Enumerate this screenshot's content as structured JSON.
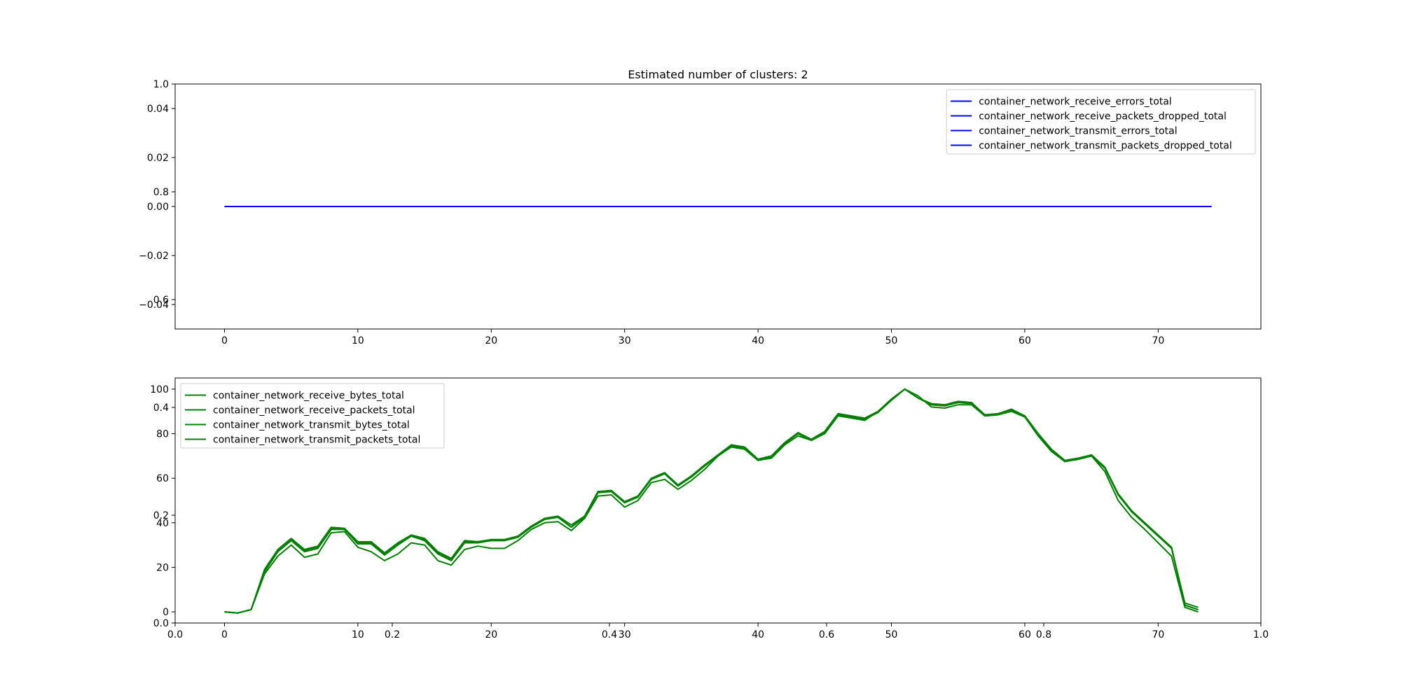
{
  "figure": {
    "title": "Estimated number of clusters: 2",
    "background_axis": {
      "x_ticks": [
        "0.0",
        "0.2",
        "0.4",
        "0.6",
        "0.8",
        "1.0"
      ],
      "y_ticks": [
        "0.0",
        "0.2",
        "0.4",
        "0.6",
        "0.8",
        "1.0"
      ],
      "xlim": [
        0,
        1
      ],
      "ylim": [
        0,
        1
      ]
    }
  },
  "chart_data": [
    {
      "type": "line",
      "title": "Estimated number of clusters: 2",
      "xlim": [
        -3.7,
        77.7
      ],
      "ylim": [
        -0.05,
        0.05
      ],
      "x_ticks": [
        0,
        10,
        20,
        30,
        40,
        50,
        60,
        70
      ],
      "y_ticks": [
        -0.04,
        -0.02,
        0.0,
        0.02,
        0.04
      ],
      "y_tick_labels": [
        "−0.04",
        "−0.02",
        "0.00",
        "0.02",
        "0.04"
      ],
      "legend_position": "top-right",
      "grid": false,
      "color": "#0000ff",
      "x_range": [
        0,
        74
      ],
      "series": [
        {
          "name": "container_network_receive_errors_total",
          "value": 0
        },
        {
          "name": "container_network_receive_packets_dropped_total",
          "value": 0
        },
        {
          "name": "container_network_transmit_errors_total",
          "value": 0
        },
        {
          "name": "container_network_transmit_packets_dropped_total",
          "value": 0
        }
      ]
    },
    {
      "type": "line",
      "xlim": [
        -3.7,
        77.7
      ],
      "ylim": [
        -5,
        105
      ],
      "x_ticks": [
        0,
        10,
        20,
        30,
        40,
        50,
        60,
        70
      ],
      "y_ticks": [
        0,
        20,
        40,
        60,
        80,
        100
      ],
      "legend_position": "top-left",
      "grid": false,
      "color": "#008000",
      "series": [
        {
          "name": "container_network_receive_bytes_total",
          "values": [
            0,
            -0.5,
            1,
            17,
            25,
            30,
            24.5,
            26,
            35.5,
            36,
            29,
            27,
            23,
            26,
            31,
            30,
            23,
            21,
            28,
            29.5,
            28.5,
            28.5,
            32,
            37,
            40,
            40.5,
            36.5,
            42,
            52,
            52.5,
            47,
            50,
            58,
            59.5,
            55,
            59,
            64,
            70,
            74,
            73,
            68,
            69,
            75,
            79,
            77,
            80,
            88,
            87,
            86,
            90,
            95,
            100,
            97,
            92,
            91.5,
            93,
            93,
            88,
            88.5,
            90,
            87.5,
            79,
            72,
            67.5,
            68.5,
            70,
            63,
            50,
            42.5,
            37,
            31,
            25,
            2,
            0
          ]
        },
        {
          "name": "container_network_receive_packets_total",
          "values": [
            0,
            -0.5,
            1,
            19,
            28,
            33,
            28,
            29.5,
            38,
            37.5,
            31.5,
            31.5,
            26.5,
            31,
            34.5,
            33,
            27,
            24,
            32,
            31.5,
            32.5,
            32.5,
            34,
            38.5,
            42,
            43,
            39,
            43,
            54,
            54.5,
            49.5,
            52,
            60,
            62.5,
            57,
            61,
            66,
            70.5,
            75,
            74,
            68.5,
            70,
            76,
            80.5,
            77.5,
            81,
            89,
            88,
            87,
            90,
            95.5,
            100,
            96,
            93.5,
            93,
            94.5,
            94,
            88.5,
            89,
            91,
            88,
            80,
            73,
            68,
            69,
            70.5,
            65,
            53,
            45.5,
            40,
            34.5,
            29,
            3,
            1
          ]
        },
        {
          "name": "container_network_transmit_bytes_total",
          "values": [
            0,
            -0.5,
            1,
            18,
            27,
            32,
            27,
            28.5,
            37,
            37,
            30.5,
            30.5,
            25.5,
            30,
            34,
            32,
            26,
            23,
            31,
            31,
            32,
            32,
            33.5,
            38,
            41.5,
            42.5,
            38,
            42.5,
            53.5,
            54,
            49,
            51.5,
            59.5,
            62,
            56.5,
            60.5,
            65.5,
            70,
            74.5,
            73.5,
            68,
            69.5,
            75.5,
            80,
            77,
            80.5,
            88.5,
            87.5,
            86.5,
            89.5,
            95,
            100,
            96,
            93,
            92.5,
            94,
            93.5,
            88,
            88.5,
            90.5,
            87.5,
            79.5,
            72.5,
            67.5,
            68.5,
            70,
            64.5,
            52.5,
            45,
            39.5,
            34,
            28.5,
            4,
            2
          ]
        },
        {
          "name": "container_network_transmit_packets_total",
          "values": [
            0,
            -0.5,
            1,
            18.5,
            27.5,
            32.5,
            27.5,
            29,
            37.5,
            37,
            31,
            31,
            26,
            30.5,
            34.5,
            32.5,
            26.5,
            23.5,
            31.5,
            31.5,
            32,
            32,
            34,
            38,
            41.5,
            42.5,
            38,
            43,
            54,
            54.5,
            49,
            52,
            59.5,
            62,
            56.5,
            61,
            66,
            70,
            74.5,
            73.5,
            68.5,
            70,
            76,
            80,
            77,
            80.5,
            88.5,
            87.5,
            86.5,
            90,
            95.5,
            100,
            96,
            93,
            92.5,
            94,
            94,
            88,
            88.5,
            90.5,
            88,
            80,
            73,
            67.5,
            68.5,
            70.5,
            65,
            52.5,
            45,
            39.5,
            34,
            29,
            3,
            1
          ]
        }
      ]
    }
  ]
}
